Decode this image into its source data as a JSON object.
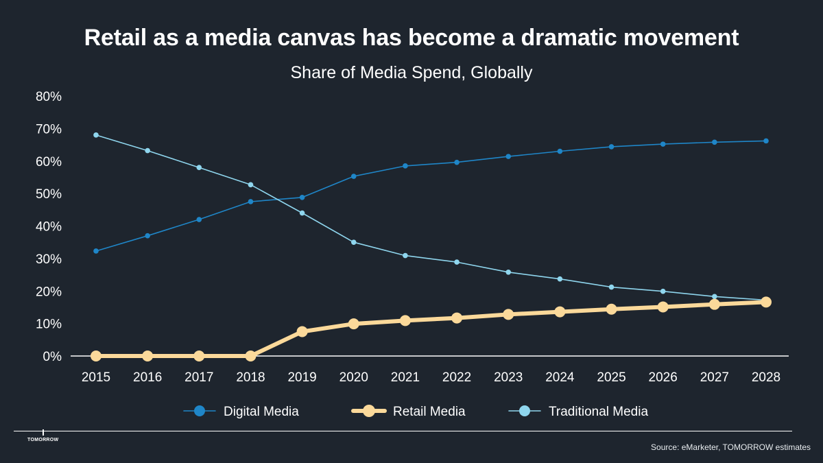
{
  "header": {
    "title": "Retail as a media canvas has become a dramatic movement",
    "subtitle": "Share of Media Spend, Globally"
  },
  "footer": {
    "brand": "TOMORROW",
    "source": "Source: eMarketer, TOMORROW estimates"
  },
  "chart_data": {
    "type": "line",
    "title": "Share of Media Spend, Globally",
    "xlabel": "",
    "ylabel": "",
    "x": [
      "2015",
      "2016",
      "2017",
      "2018",
      "2019",
      "2020",
      "2021",
      "2022",
      "2023",
      "2024",
      "2025",
      "2026",
      "2027",
      "2028"
    ],
    "ylim": [
      0,
      80
    ],
    "yticks": [
      0,
      10,
      20,
      30,
      40,
      50,
      60,
      70,
      80
    ],
    "ytick_labels": [
      "0%",
      "10%",
      "20%",
      "30%",
      "40%",
      "50%",
      "60%",
      "70%",
      "80%"
    ],
    "legend_position": "bottom",
    "series": [
      {
        "name": "Digital Media",
        "color": "#1f86c8",
        "values": [
          32.3,
          37.0,
          42.0,
          47.5,
          48.8,
          55.3,
          58.5,
          59.6,
          61.4,
          63.0,
          64.4,
          65.2,
          65.8,
          66.2
        ]
      },
      {
        "name": "Retail Media",
        "color": "#fbd99a",
        "values": [
          0,
          0,
          0,
          0,
          7.5,
          9.9,
          10.9,
          11.7,
          12.8,
          13.6,
          14.4,
          15.1,
          15.9,
          16.6
        ]
      },
      {
        "name": "Traditional Media",
        "color": "#8fd6ee",
        "values": [
          68.0,
          63.2,
          58.0,
          52.7,
          44.0,
          35.0,
          30.9,
          28.9,
          25.8,
          23.7,
          21.2,
          19.9,
          18.3,
          17.2
        ]
      }
    ]
  }
}
